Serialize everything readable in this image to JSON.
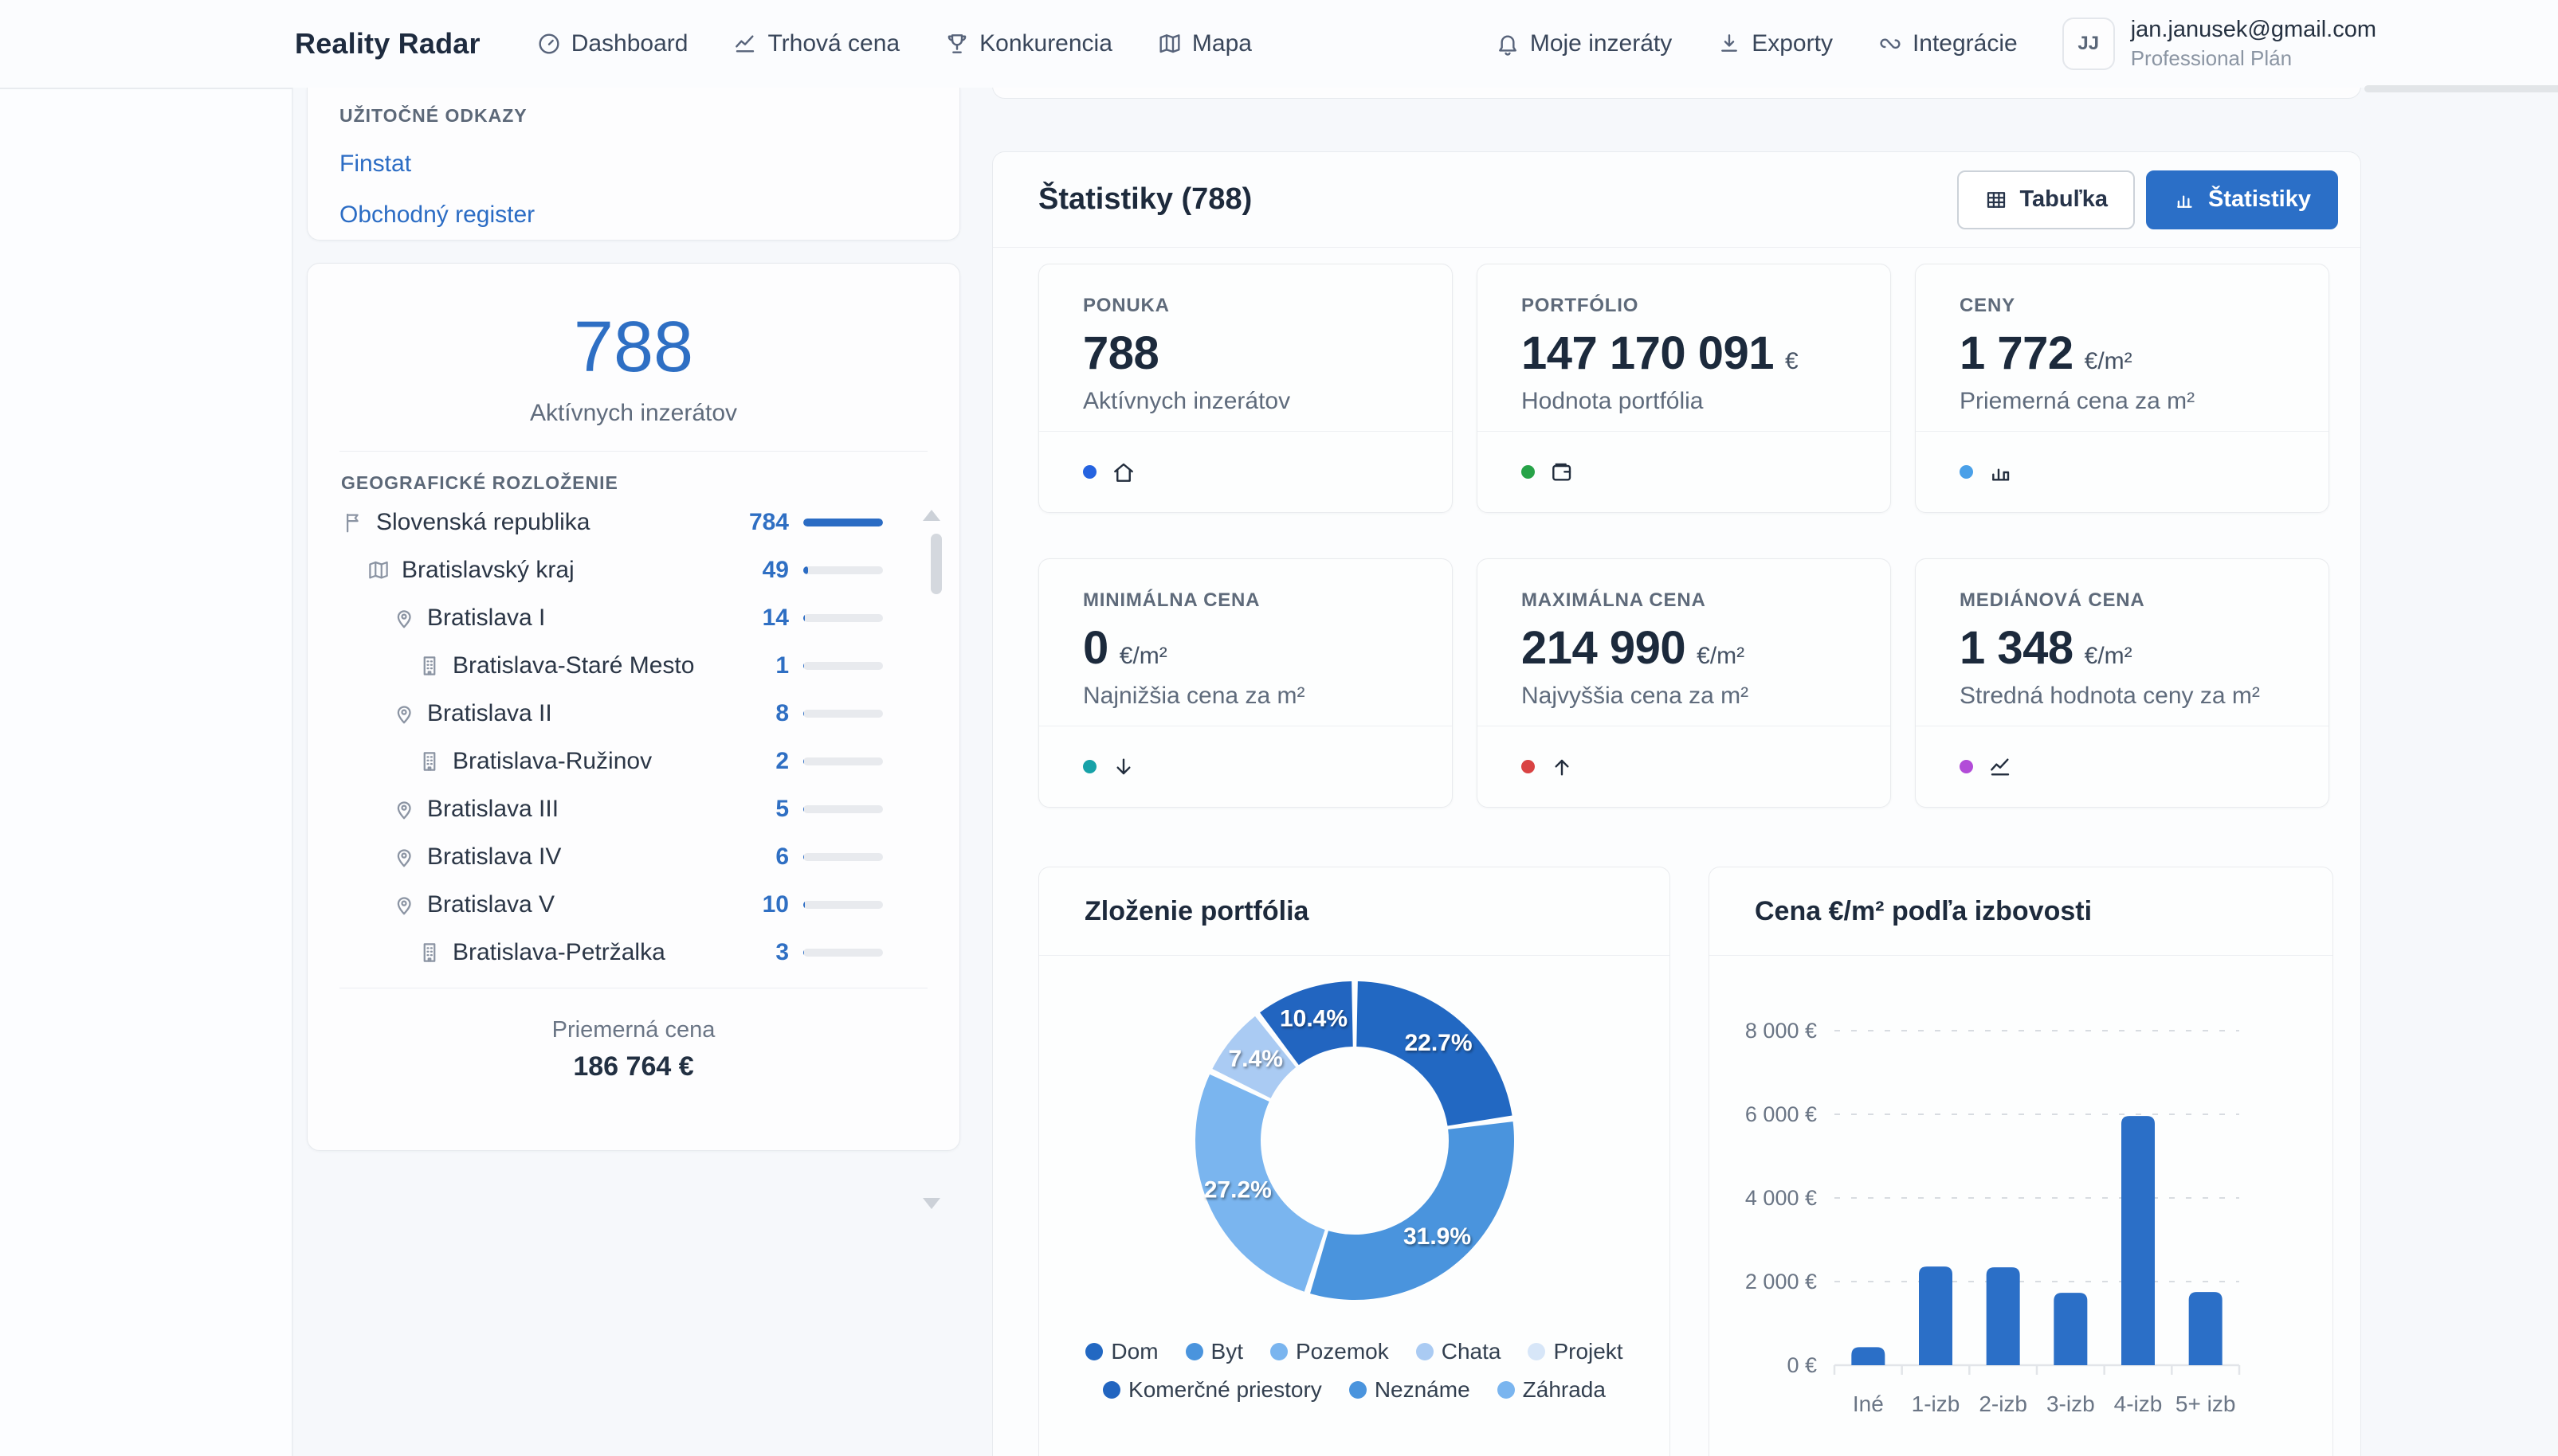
{
  "nav": {
    "brand": "Reality Radar",
    "items": [
      {
        "label": "Dashboard",
        "icon": "gauge-icon"
      },
      {
        "label": "Trhová cena",
        "icon": "trend-icon"
      },
      {
        "label": "Konkurencia",
        "icon": "trophy-icon"
      },
      {
        "label": "Mapa",
        "icon": "map-icon"
      }
    ],
    "right_items": [
      {
        "label": "Moje inzeráty",
        "icon": "bell-icon"
      },
      {
        "label": "Exporty",
        "icon": "download-icon"
      },
      {
        "label": "Integrácie",
        "icon": "integration-icon"
      }
    ],
    "user": {
      "initials": "JJ",
      "email": "jan.janusek@gmail.com",
      "plan": "Professional Plán"
    }
  },
  "sidebar": {
    "links_card": {
      "title": "UŽITOČNÉ ODKAZY",
      "links": [
        "Finstat",
        "Obchodný register"
      ]
    },
    "summary_card": {
      "count": "788",
      "count_label": "Aktívnych inzerátov",
      "geo_title": "GEOGRAFICKÉ ROZLOŽENIE",
      "regions": [
        {
          "icon": "flag-icon",
          "name": "Slovenská republika",
          "count": "784",
          "level": 0,
          "pct": 100
        },
        {
          "icon": "map-icon",
          "name": "Bratislavský kraj",
          "count": "49",
          "level": 1,
          "pct": 6
        },
        {
          "icon": "pin-icon",
          "name": "Bratislava I",
          "count": "14",
          "level": 2,
          "pct": 2
        },
        {
          "icon": "building-icon",
          "name": "Bratislava-Staré Mesto",
          "count": "1",
          "level": 3,
          "pct": 1
        },
        {
          "icon": "pin-icon",
          "name": "Bratislava II",
          "count": "8",
          "level": 2,
          "pct": 1
        },
        {
          "icon": "building-icon",
          "name": "Bratislava-Ružinov",
          "count": "2",
          "level": 3,
          "pct": 1
        },
        {
          "icon": "pin-icon",
          "name": "Bratislava III",
          "count": "5",
          "level": 2,
          "pct": 1
        },
        {
          "icon": "pin-icon",
          "name": "Bratislava IV",
          "count": "6",
          "level": 2,
          "pct": 1
        },
        {
          "icon": "pin-icon",
          "name": "Bratislava V",
          "count": "10",
          "level": 2,
          "pct": 2
        },
        {
          "icon": "building-icon",
          "name": "Bratislava-Petržalka",
          "count": "3",
          "level": 3,
          "pct": 1
        }
      ],
      "avg_label": "Priemerná cena",
      "avg_value": "186 764 €"
    }
  },
  "main": {
    "header": {
      "title": "Štatistiky (788)",
      "table_btn": "Tabuľka",
      "stats_btn": "Štatistiky"
    },
    "stat_cards": [
      {
        "label": "PONUKA",
        "value": "788",
        "unit": "",
        "subtitle": "Aktívnych inzerátov",
        "dot_color": "#2563e0",
        "icon": "home-icon"
      },
      {
        "label": "PORTFÓLIO",
        "value": "147 170 091",
        "unit": "€",
        "subtitle": "Hodnota portfólia",
        "dot_color": "#27a348",
        "icon": "wallet-icon"
      },
      {
        "label": "CENY",
        "value": "1 772",
        "unit": "€/m²",
        "subtitle": "Priemerná cena za m²",
        "dot_color": "#4aa0e8",
        "icon": "bar-chart-icon"
      },
      {
        "label": "MINIMÁLNA CENA",
        "value": "0",
        "unit": "€/m²",
        "subtitle": "Najnižšia cena za m²",
        "dot_color": "#17a2a8",
        "icon": "arrow-down-icon"
      },
      {
        "label": "MAXIMÁLNA CENA",
        "value": "214 990",
        "unit": "€/m²",
        "subtitle": "Najvyššia cena za m²",
        "dot_color": "#d94343",
        "icon": "arrow-up-icon"
      },
      {
        "label": "MEDIÁNOVÁ CENA",
        "value": "1 348",
        "unit": "€/m²",
        "subtitle": "Stredná hodnota ceny za m²",
        "dot_color": "#b24cd8",
        "icon": "trend-icon"
      }
    ]
  },
  "chart_data": [
    {
      "type": "pie",
      "donut": true,
      "title": "Zloženie portfólia",
      "labels": [
        "Dom",
        "Byt",
        "Pozemok",
        "Chata",
        "Projekt",
        "Komerčné priestory",
        "Neznáme",
        "Záhrada"
      ],
      "values": [
        22.7,
        31.9,
        27.2,
        7.4,
        0.0,
        10.4,
        0.0,
        0.0
      ],
      "slice_labels": [
        "22.7%",
        "31.9%",
        "27.2%",
        "7.4%",
        "",
        "10.4%",
        "",
        ""
      ],
      "colors": [
        "#2268c2",
        "#4a94dd",
        "#7ab5ef",
        "#aacbf3",
        "#d7e6f8",
        "#2265c0",
        "#4a94dd",
        "#7ab5ef"
      ],
      "legend_position": "bottom"
    },
    {
      "type": "bar",
      "title": "Cena €/m² podľa izbovosti",
      "categories": [
        "Iné",
        "1-izb",
        "2-izb",
        "3-izb",
        "4-izb",
        "5+ izb"
      ],
      "values": [
        430,
        2360,
        2340,
        1730,
        5960,
        1750
      ],
      "ylim": [
        0,
        8000
      ],
      "ytick_labels": [
        "0 €",
        "2 000 €",
        "4 000 €",
        "6 000 €",
        "8 000 €"
      ],
      "grid": "dashed",
      "bar_color": "#2b6fc7"
    }
  ]
}
